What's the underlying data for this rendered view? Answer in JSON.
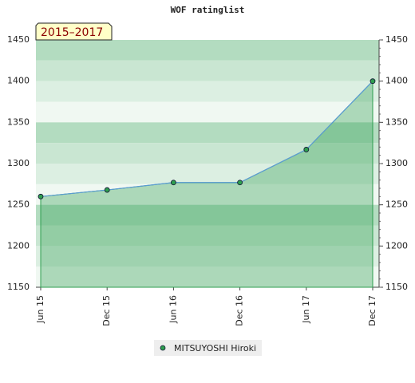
{
  "chart_data": {
    "type": "line",
    "title": "WOF ratinglist",
    "annotation": "2015–2017",
    "categories": [
      "Jun 15",
      "Dec 15",
      "Jun 16",
      "Dec 16",
      "Jun 17",
      "Dec 17"
    ],
    "series": [
      {
        "name": "MITSUYOSHI Hiroki",
        "color": "#2e9e4f",
        "values": [
          1260,
          1268,
          1277,
          1277,
          1317,
          1400
        ]
      }
    ],
    "ylim": [
      1150,
      1450
    ],
    "yticks": [
      1150,
      1200,
      1250,
      1300,
      1350,
      1400,
      1450
    ],
    "grid": true
  }
}
